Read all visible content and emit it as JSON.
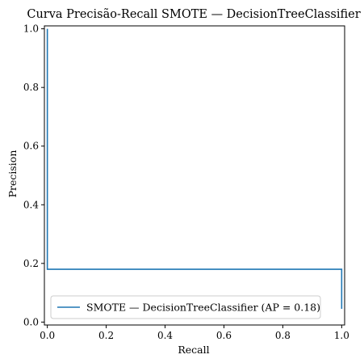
{
  "chart_data": {
    "type": "line",
    "title": "Curva Precisão-Recall SMOTE — DecisionTreeClassifier",
    "xlabel": "Recall",
    "ylabel": "Precision",
    "xlim": [
      -0.01,
      1.01
    ],
    "ylim": [
      -0.01,
      1.01
    ],
    "xticks": [
      "0.0",
      "0.2",
      "0.4",
      "0.6",
      "0.8",
      "1.0"
    ],
    "yticks": [
      "0.0",
      "0.2",
      "0.4",
      "0.6",
      "0.8",
      "1.0"
    ],
    "legend_placement": "lower-left",
    "grid": false,
    "series": [
      {
        "name": "SMOTE — DecisionTreeClassifier (AP = 0.18)",
        "color": "#1f77b4",
        "x": [
          0.0,
          0.0,
          0.0,
          0.18,
          1.0,
          1.0
        ],
        "y": [
          1.0,
          1.0,
          0.18,
          0.18,
          0.18,
          0.045
        ]
      }
    ]
  }
}
